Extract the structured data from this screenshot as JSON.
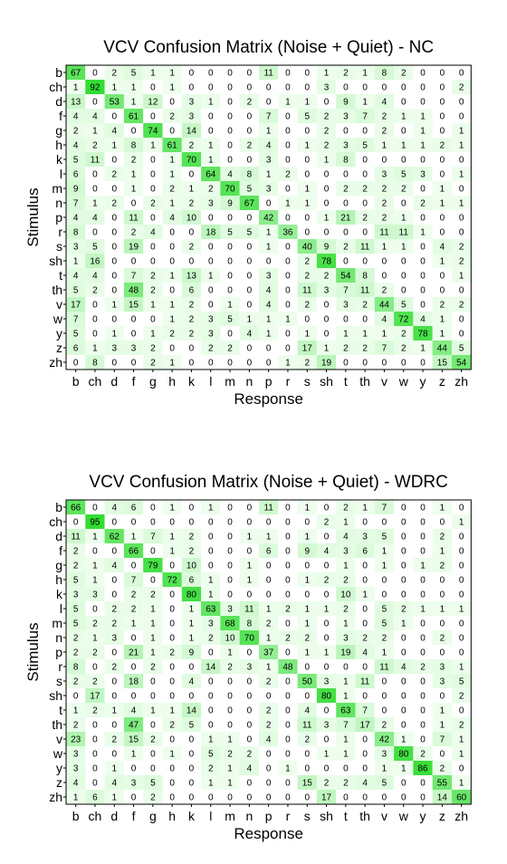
{
  "chart_data": [
    {
      "type": "heatmap",
      "title": "VCV Confusion Matrix (Noise + Quiet) - NC",
      "xlabel": "Response",
      "ylabel": "Stimulus",
      "labels": [
        "b",
        "ch",
        "d",
        "f",
        "g",
        "h",
        "k",
        "l",
        "m",
        "n",
        "p",
        "r",
        "s",
        "sh",
        "t",
        "th",
        "v",
        "w",
        "y",
        "z",
        "zh"
      ],
      "colors": {
        "high": "#33dd33",
        "low": "#f2fff2",
        "zero": "#ffffff"
      },
      "values": [
        [
          67,
          0,
          2,
          5,
          1,
          1,
          0,
          0,
          0,
          0,
          11,
          0,
          0,
          1,
          2,
          1,
          8,
          2,
          0,
          0,
          0
        ],
        [
          1,
          92,
          1,
          1,
          0,
          1,
          0,
          0,
          0,
          0,
          0,
          0,
          0,
          3,
          0,
          0,
          0,
          0,
          0,
          0,
          2
        ],
        [
          13,
          0,
          53,
          1,
          12,
          0,
          3,
          1,
          0,
          2,
          0,
          1,
          1,
          0,
          9,
          1,
          4,
          0,
          0,
          0,
          0
        ],
        [
          4,
          4,
          0,
          61,
          0,
          2,
          3,
          0,
          0,
          0,
          7,
          0,
          5,
          2,
          3,
          7,
          2,
          1,
          1,
          0,
          0
        ],
        [
          2,
          1,
          4,
          0,
          74,
          0,
          14,
          0,
          0,
          0,
          1,
          0,
          0,
          2,
          0,
          0,
          2,
          0,
          1,
          0,
          1
        ],
        [
          4,
          2,
          1,
          8,
          1,
          61,
          2,
          1,
          0,
          2,
          4,
          0,
          1,
          2,
          3,
          5,
          1,
          1,
          1,
          2,
          1
        ],
        [
          5,
          11,
          0,
          2,
          0,
          1,
          70,
          1,
          0,
          0,
          3,
          0,
          0,
          1,
          8,
          0,
          0,
          0,
          0,
          0,
          0
        ],
        [
          6,
          0,
          2,
          1,
          0,
          1,
          0,
          64,
          4,
          8,
          1,
          2,
          0,
          0,
          0,
          0,
          3,
          5,
          3,
          0,
          1
        ],
        [
          9,
          0,
          0,
          1,
          0,
          2,
          1,
          2,
          70,
          5,
          3,
          0,
          1,
          0,
          2,
          2,
          2,
          2,
          0,
          1,
          0
        ],
        [
          7,
          1,
          2,
          0,
          2,
          1,
          2,
          3,
          9,
          67,
          0,
          1,
          1,
          0,
          0,
          0,
          2,
          0,
          2,
          1,
          1
        ],
        [
          4,
          4,
          0,
          11,
          0,
          4,
          10,
          0,
          0,
          0,
          42,
          0,
          0,
          1,
          21,
          2,
          2,
          1,
          0,
          0,
          0
        ],
        [
          8,
          0,
          0,
          2,
          4,
          0,
          0,
          18,
          5,
          5,
          1,
          36,
          0,
          0,
          0,
          0,
          11,
          11,
          1,
          0,
          0
        ],
        [
          3,
          5,
          0,
          19,
          0,
          0,
          2,
          0,
          0,
          0,
          1,
          0,
          40,
          9,
          2,
          11,
          1,
          1,
          0,
          4,
          2
        ],
        [
          1,
          16,
          0,
          0,
          0,
          0,
          0,
          0,
          0,
          0,
          0,
          0,
          2,
          78,
          0,
          0,
          0,
          0,
          0,
          1,
          2
        ],
        [
          4,
          4,
          0,
          7,
          2,
          1,
          13,
          1,
          0,
          0,
          3,
          0,
          2,
          2,
          54,
          8,
          0,
          0,
          0,
          0,
          1
        ],
        [
          5,
          2,
          0,
          48,
          2,
          0,
          6,
          0,
          0,
          0,
          4,
          0,
          11,
          3,
          7,
          11,
          2,
          0,
          0,
          0,
          0
        ],
        [
          17,
          0,
          1,
          15,
          1,
          1,
          2,
          0,
          1,
          0,
          4,
          0,
          2,
          0,
          3,
          2,
          44,
          5,
          0,
          2,
          2
        ],
        [
          7,
          0,
          0,
          0,
          0,
          1,
          2,
          3,
          5,
          1,
          1,
          1,
          0,
          0,
          0,
          0,
          4,
          72,
          4,
          1,
          0
        ],
        [
          5,
          0,
          1,
          0,
          1,
          2,
          2,
          3,
          0,
          4,
          1,
          0,
          1,
          0,
          1,
          1,
          1,
          2,
          78,
          1,
          0
        ],
        [
          6,
          1,
          3,
          3,
          2,
          0,
          0,
          2,
          2,
          0,
          0,
          0,
          17,
          1,
          2,
          2,
          7,
          2,
          1,
          44,
          5
        ],
        [
          0,
          8,
          0,
          0,
          2,
          1,
          0,
          0,
          0,
          0,
          0,
          1,
          2,
          19,
          0,
          0,
          0,
          0,
          0,
          15,
          54
        ]
      ]
    },
    {
      "type": "heatmap",
      "title": "VCV Confusion Matrix (Noise + Quiet) - WDRC",
      "xlabel": "Response",
      "ylabel": "Stimulus",
      "labels": [
        "b",
        "ch",
        "d",
        "f",
        "g",
        "h",
        "k",
        "l",
        "m",
        "n",
        "p",
        "r",
        "s",
        "sh",
        "t",
        "th",
        "v",
        "w",
        "y",
        "z",
        "zh"
      ],
      "colors": {
        "high": "#33dd33",
        "low": "#f2fff2",
        "zero": "#ffffff"
      },
      "values": [
        [
          66,
          0,
          4,
          6,
          0,
          1,
          0,
          1,
          0,
          0,
          11,
          0,
          1,
          0,
          2,
          1,
          7,
          0,
          0,
          1,
          0
        ],
        [
          0,
          95,
          0,
          0,
          0,
          0,
          0,
          0,
          0,
          0,
          0,
          0,
          0,
          2,
          1,
          0,
          0,
          0,
          0,
          0,
          1
        ],
        [
          11,
          1,
          62,
          1,
          7,
          1,
          2,
          0,
          0,
          1,
          1,
          0,
          1,
          0,
          4,
          3,
          5,
          0,
          0,
          2,
          0
        ],
        [
          2,
          0,
          0,
          66,
          0,
          1,
          2,
          0,
          0,
          0,
          6,
          0,
          9,
          4,
          3,
          6,
          1,
          0,
          0,
          1,
          0
        ],
        [
          2,
          1,
          4,
          0,
          79,
          0,
          10,
          0,
          0,
          1,
          0,
          0,
          0,
          0,
          1,
          0,
          1,
          0,
          1,
          2,
          0
        ],
        [
          5,
          1,
          0,
          7,
          0,
          72,
          6,
          1,
          0,
          1,
          0,
          0,
          1,
          2,
          2,
          0,
          0,
          0,
          0,
          0,
          0
        ],
        [
          3,
          3,
          0,
          2,
          2,
          0,
          80,
          1,
          0,
          0,
          0,
          0,
          0,
          0,
          10,
          1,
          0,
          0,
          0,
          0,
          0
        ],
        [
          5,
          0,
          2,
          2,
          1,
          0,
          1,
          63,
          3,
          11,
          1,
          2,
          1,
          1,
          2,
          0,
          5,
          2,
          1,
          1,
          1
        ],
        [
          5,
          2,
          2,
          1,
          1,
          0,
          1,
          3,
          68,
          8,
          2,
          0,
          1,
          0,
          1,
          0,
          5,
          1,
          0,
          0,
          0
        ],
        [
          2,
          1,
          3,
          0,
          1,
          0,
          1,
          2,
          10,
          70,
          1,
          2,
          2,
          0,
          3,
          2,
          2,
          0,
          0,
          2,
          0
        ],
        [
          2,
          2,
          0,
          21,
          1,
          2,
          9,
          0,
          1,
          0,
          37,
          0,
          1,
          1,
          19,
          4,
          1,
          0,
          0,
          0,
          0
        ],
        [
          8,
          0,
          2,
          0,
          2,
          0,
          0,
          14,
          2,
          3,
          1,
          48,
          0,
          0,
          0,
          0,
          11,
          4,
          2,
          3,
          1
        ],
        [
          2,
          2,
          0,
          18,
          0,
          0,
          4,
          0,
          0,
          0,
          2,
          0,
          50,
          3,
          1,
          11,
          0,
          0,
          0,
          3,
          5
        ],
        [
          0,
          17,
          0,
          0,
          0,
          0,
          0,
          0,
          0,
          0,
          0,
          0,
          0,
          80,
          1,
          0,
          0,
          0,
          0,
          0,
          2
        ],
        [
          1,
          2,
          1,
          4,
          1,
          1,
          14,
          0,
          0,
          0,
          2,
          0,
          4,
          0,
          63,
          7,
          0,
          0,
          0,
          1,
          0
        ],
        [
          2,
          0,
          0,
          47,
          0,
          2,
          5,
          0,
          0,
          0,
          2,
          0,
          11,
          3,
          7,
          17,
          2,
          0,
          0,
          1,
          2
        ],
        [
          23,
          0,
          2,
          15,
          2,
          0,
          0,
          1,
          1,
          0,
          4,
          0,
          2,
          0,
          1,
          0,
          42,
          1,
          0,
          7,
          1
        ],
        [
          3,
          0,
          0,
          1,
          0,
          1,
          0,
          5,
          2,
          2,
          0,
          0,
          0,
          1,
          1,
          0,
          3,
          80,
          2,
          0,
          1
        ],
        [
          3,
          0,
          1,
          0,
          0,
          0,
          0,
          2,
          1,
          4,
          0,
          1,
          0,
          0,
          0,
          0,
          1,
          1,
          86,
          2,
          0
        ],
        [
          4,
          0,
          4,
          3,
          5,
          0,
          0,
          1,
          1,
          0,
          0,
          0,
          15,
          2,
          2,
          4,
          5,
          0,
          0,
          55,
          1
        ],
        [
          1,
          6,
          1,
          0,
          2,
          0,
          0,
          0,
          0,
          0,
          0,
          0,
          0,
          17,
          0,
          0,
          0,
          0,
          0,
          14,
          60
        ]
      ]
    }
  ]
}
